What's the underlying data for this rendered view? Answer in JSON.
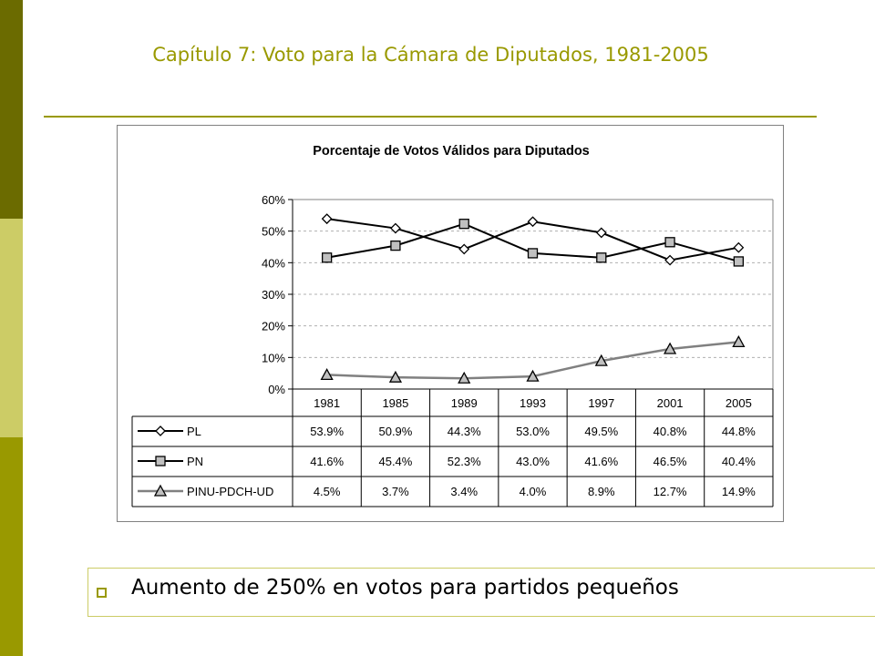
{
  "slide": {
    "title": "Capítulo 7: Voto para la Cámara de Diputados, 1981-2005",
    "bullet": "Aumento de 250% en votos para partidos pequeños"
  },
  "colors": {
    "accent": "#999900",
    "dark": "#6b6b00",
    "light": "#cccc66",
    "series_gray": "#808080"
  },
  "chart_data": {
    "type": "line",
    "title": "Porcentaje de Votos Válidos para Diputados",
    "xlabel": "",
    "ylabel": "",
    "ylim": [
      0,
      60
    ],
    "yticks": [
      "0%",
      "10%",
      "20%",
      "30%",
      "40%",
      "50%",
      "60%"
    ],
    "grid": true,
    "categories": [
      "1981",
      "1985",
      "1989",
      "1993",
      "1997",
      "2001",
      "2005"
    ],
    "series": [
      {
        "name": "PL",
        "marker": "diamond",
        "color": "#000000",
        "values": [
          53.9,
          50.9,
          44.3,
          53.0,
          49.5,
          40.8,
          44.8
        ],
        "labels": [
          "53.9%",
          "50.9%",
          "44.3%",
          "53.0%",
          "49.5%",
          "40.8%",
          "44.8%"
        ]
      },
      {
        "name": "PN",
        "marker": "square",
        "color": "#000000",
        "values": [
          41.6,
          45.4,
          52.3,
          43.0,
          41.6,
          46.5,
          40.4
        ],
        "labels": [
          "41.6%",
          "45.4%",
          "52.3%",
          "43.0%",
          "41.6%",
          "46.5%",
          "40.4%"
        ]
      },
      {
        "name": "PINU-PDCH-UD",
        "marker": "triangle",
        "color": "#808080",
        "values": [
          4.5,
          3.7,
          3.4,
          4.0,
          8.9,
          12.7,
          14.9
        ],
        "labels": [
          "4.5%",
          "3.7%",
          "3.4%",
          "4.0%",
          "8.9%",
          "12.7%",
          "14.9%"
        ]
      }
    ],
    "data_table": true
  }
}
